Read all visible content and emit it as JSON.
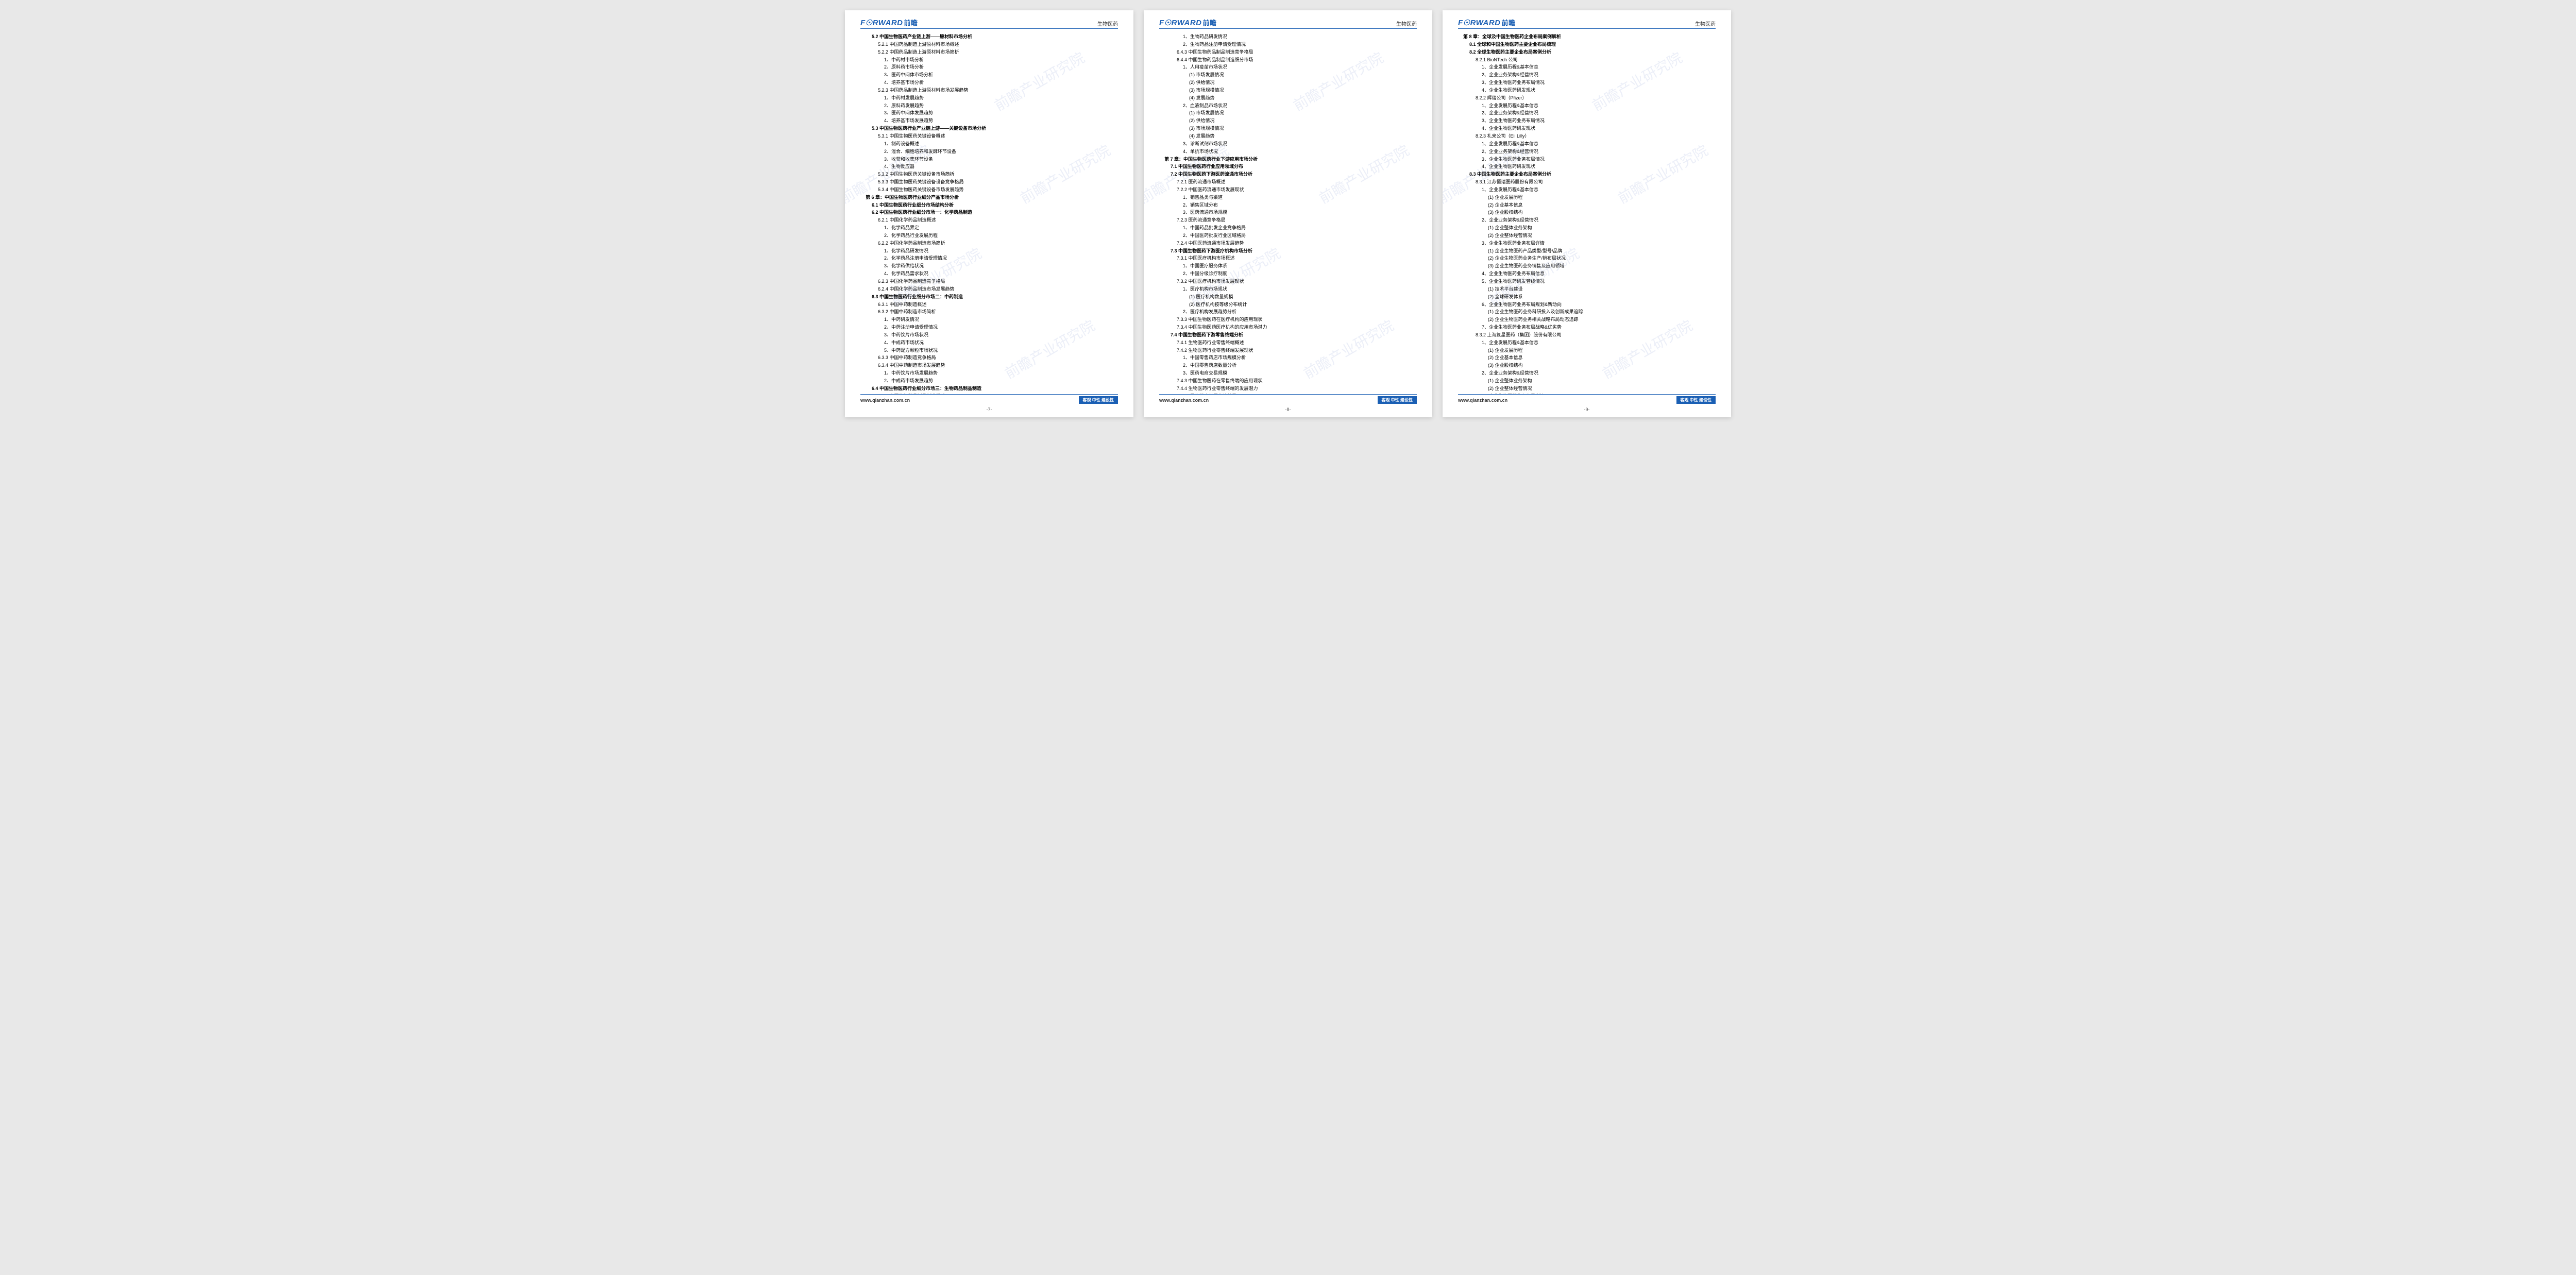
{
  "brand": {
    "logo_en": "F☉RWARD",
    "logo_cn": "前瞻",
    "header_category": "生物医药",
    "footer_url": "www.qianzhan.com.cn",
    "footer_tag": "客观 中性 建设性",
    "watermark": "前瞻产业研究院"
  },
  "pages": [
    {
      "num": "-7-",
      "lines": [
        {
          "cls": "ind1",
          "t": "5.2 中国生物医药产业链上游——原材料市场分析"
        },
        {
          "cls": "ind2",
          "t": "5.2.1 中国药品制造上游原材料市场概述"
        },
        {
          "cls": "ind2",
          "t": "5.2.2 中国药品制造上游原材料市场简析"
        },
        {
          "cls": "ind3",
          "t": "1、中药材市场分析"
        },
        {
          "cls": "ind3",
          "t": "2、原料药市场分析"
        },
        {
          "cls": "ind3",
          "t": "3、医药中间体市场分析"
        },
        {
          "cls": "ind3",
          "t": "4、培养基市场分析"
        },
        {
          "cls": "ind2",
          "t": "5.2.3 中国药品制造上游原材料市场发展趋势"
        },
        {
          "cls": "ind3",
          "t": "1、中药材发展趋势"
        },
        {
          "cls": "ind3",
          "t": "2、原料药发展趋势"
        },
        {
          "cls": "ind3",
          "t": "3、医药中间体发展趋势"
        },
        {
          "cls": "ind3",
          "t": "4、培养基市场发展趋势"
        },
        {
          "cls": "ind1",
          "t": "5.3 中国生物医药行业产业链上游——关键设备市场分析"
        },
        {
          "cls": "ind2",
          "t": "5.3.1 中国生物医药关键设备概述"
        },
        {
          "cls": "ind3",
          "t": "1、制药设备概述"
        },
        {
          "cls": "ind3",
          "t": "2、混合、细胞培养和发酵环节设备"
        },
        {
          "cls": "ind3",
          "t": "3、收获和收集环节设备"
        },
        {
          "cls": "ind3",
          "t": "4、生物反应器"
        },
        {
          "cls": "ind2",
          "t": "5.3.2 中国生物医药关键设备市场简析"
        },
        {
          "cls": "ind2",
          "t": "5.3.3 中国生物医药关键设备设备竞争格局"
        },
        {
          "cls": "ind2",
          "t": "5.3.4 中国生物医药关键设备市场发展趋势"
        },
        {
          "cls": "ind0",
          "t": "第 6 章：中国生物医药行业细分产品市场分析"
        },
        {
          "cls": "ind1",
          "t": "6.1 中国生物医药行业细分市场结构分析"
        },
        {
          "cls": "ind1",
          "t": "6.2 中国生物医药行业细分市场一：化学药品制造"
        },
        {
          "cls": "ind2",
          "t": "6.2.1 中国化学药品制造概述"
        },
        {
          "cls": "ind3",
          "t": "1、化学药品界定"
        },
        {
          "cls": "ind3",
          "t": "2、化学药品行业发展历程"
        },
        {
          "cls": "ind2",
          "t": "6.2.2 中国化学药品制造市场简析"
        },
        {
          "cls": "ind3",
          "t": "1、化学药品研发情况"
        },
        {
          "cls": "ind3",
          "t": "2、化学药品注册申请受理情况"
        },
        {
          "cls": "ind3",
          "t": "3、化学药供给状况"
        },
        {
          "cls": "ind3",
          "t": "4、化学药品需求状况"
        },
        {
          "cls": "ind2",
          "t": "6.2.3 中国化学药品制造竞争格局"
        },
        {
          "cls": "ind2",
          "t": "6.2.4 中国化学药品制造市场发展趋势"
        },
        {
          "cls": "ind1",
          "t": "6.3 中国生物医药行业细分市场二：中药制造"
        },
        {
          "cls": "ind2",
          "t": "6.3.1 中国中药制造概述"
        },
        {
          "cls": "ind2",
          "t": "6.3.2 中国中药制造市场简析"
        },
        {
          "cls": "ind3",
          "t": "1、中药研发情况"
        },
        {
          "cls": "ind3",
          "t": "2、中药注册申请受理情况"
        },
        {
          "cls": "ind3",
          "t": "3、中药饮片市场状况"
        },
        {
          "cls": "ind3",
          "t": "4、中成药市场状况"
        },
        {
          "cls": "ind3",
          "t": "5、中药配方颗粒市场状况"
        },
        {
          "cls": "ind2",
          "t": "6.3.3 中国中药制造竞争格局"
        },
        {
          "cls": "ind2",
          "t": "6.3.4 中国中药制造市场发展趋势"
        },
        {
          "cls": "ind3",
          "t": "1、中药饮片市场发展趋势"
        },
        {
          "cls": "ind3",
          "t": "2、中成药市场发展趋势"
        },
        {
          "cls": "ind1",
          "t": "6.4 中国生物医药行业细分市场三：生物药品制品制造"
        },
        {
          "cls": "ind2",
          "t": "6.4.1 中国生物药品制品制造概述"
        },
        {
          "cls": "ind2",
          "t": "6.4.2 中国生物药品研发和注册申请情况"
        }
      ]
    },
    {
      "num": "-8-",
      "lines": [
        {
          "cls": "ind3",
          "t": "1、生物药品研发情况"
        },
        {
          "cls": "ind3",
          "t": "2、生物药品注册申请受理情况"
        },
        {
          "cls": "ind2",
          "t": "6.4.3 中国生物药品制品制造竞争格局"
        },
        {
          "cls": "ind2",
          "t": "6.4.4 中国生物药品制品制造细分市场"
        },
        {
          "cls": "ind3",
          "t": "1、人用疫苗市场状况"
        },
        {
          "cls": "ind4",
          "t": "(1) 市场发展情况"
        },
        {
          "cls": "ind4",
          "t": "(2) 供给情况"
        },
        {
          "cls": "ind4",
          "t": "(3) 市场规模情况"
        },
        {
          "cls": "ind4",
          "t": "(4) 发展趋势"
        },
        {
          "cls": "ind3",
          "t": "2、血液制品市场状况"
        },
        {
          "cls": "ind4",
          "t": "(1) 市场发展情况"
        },
        {
          "cls": "ind4",
          "t": "(2) 供给情况"
        },
        {
          "cls": "ind4",
          "t": "(3) 市场规模情况"
        },
        {
          "cls": "ind4",
          "t": "(4) 发展趋势"
        },
        {
          "cls": "ind3",
          "t": "3、诊断试剂市场状况"
        },
        {
          "cls": "ind3",
          "t": "4、单抗市场状况"
        },
        {
          "cls": "ind0",
          "t": "第 7 章：中国生物医药行业下游应用市场分析"
        },
        {
          "cls": "ind1",
          "t": "7.1 中国生物医药行业应用领域分布"
        },
        {
          "cls": "ind1",
          "t": "7.2 中国生物医药下游医药流通市场分析"
        },
        {
          "cls": "ind2",
          "t": "7.2.1 医药流通市场概述"
        },
        {
          "cls": "ind2",
          "t": "7.2.2 中国医药流通市场发展现状"
        },
        {
          "cls": "ind3",
          "t": "1、销售品类与渠道"
        },
        {
          "cls": "ind3",
          "t": "2、销售区域分布"
        },
        {
          "cls": "ind3",
          "t": "3、医药流通市场规模"
        },
        {
          "cls": "ind2",
          "t": "7.2.3 医药流通竞争格局"
        },
        {
          "cls": "ind3",
          "t": "1、中国药品批发企业竞争格局"
        },
        {
          "cls": "ind3",
          "t": "2、中国医药批发行业区域格局"
        },
        {
          "cls": "ind2",
          "t": "7.2.4 中国医药流通市场发展趋势"
        },
        {
          "cls": "ind1",
          "t": "7.3 中国生物医药下游医疗机构市场分析"
        },
        {
          "cls": "ind2",
          "t": "7.3.1 中国医疗机构市场概述"
        },
        {
          "cls": "ind3",
          "t": "1、中国医疗服务体系"
        },
        {
          "cls": "ind3",
          "t": "2、中国分级诊疗制度"
        },
        {
          "cls": "ind2",
          "t": "7.3.2 中国医疗机构市场发展现状"
        },
        {
          "cls": "ind3",
          "t": "1、医疗机构市场现状"
        },
        {
          "cls": "ind4",
          "t": "(1) 医疗机构数量规模"
        },
        {
          "cls": "ind4",
          "t": "(2) 医疗机构按等级分布统计"
        },
        {
          "cls": "ind3",
          "t": "2、医疗机构发展趋势分析"
        },
        {
          "cls": "ind2",
          "t": "7.3.3 中国生物医药在医疗机构的应用现状"
        },
        {
          "cls": "ind2",
          "t": "7.3.4 中国生物医药医疗机构的应用市场潜力"
        },
        {
          "cls": "ind1",
          "t": "7.4 中国生物医药下游零售终端分析"
        },
        {
          "cls": "ind2",
          "t": "7.4.1 生物医药行业零售终端概述"
        },
        {
          "cls": "ind2",
          "t": "7.4.2 生物医药行业零售终端发展现状"
        },
        {
          "cls": "ind3",
          "t": "1、中国零售药店市场规模分析"
        },
        {
          "cls": "ind3",
          "t": "2、中国零售药店数量分析"
        },
        {
          "cls": "ind3",
          "t": "3、医药电商交易规模"
        },
        {
          "cls": "ind2",
          "t": "7.4.3 中国生物医药在零售终端的应用现状"
        },
        {
          "cls": "ind2",
          "t": "7.4.4 生物医药行业零售终端的发展潜力"
        },
        {
          "cls": "ind3",
          "t": "1、零售药店发展趋势前景"
        },
        {
          "cls": "ind3",
          "t": "2、医药电商发展趋势前景"
        }
      ]
    },
    {
      "num": "-9-",
      "lines": [
        {
          "cls": "ind0",
          "t": "第 8 章：全球及中国生物医药企业布局案例解析"
        },
        {
          "cls": "ind1",
          "t": "8.1 全球和中国生物医药主要企业布局梳理"
        },
        {
          "cls": "ind1",
          "t": "8.2 全球生物医药主要企业布局案例分析"
        },
        {
          "cls": "ind2",
          "t": "8.2.1 BioNTech 公司"
        },
        {
          "cls": "ind3",
          "t": "1、企业发展历程&基本信息"
        },
        {
          "cls": "ind3",
          "t": "2、企业业务架构&经营情况"
        },
        {
          "cls": "ind3",
          "t": "3、企业生物医药业务布局情况"
        },
        {
          "cls": "ind3",
          "t": "4、企业生物医药研发现状"
        },
        {
          "cls": "ind2",
          "t": "8.2.2 辉瑞公司（Pfizer）"
        },
        {
          "cls": "ind3",
          "t": "1、企业发展历程&基本信息"
        },
        {
          "cls": "ind3",
          "t": "2、企业业务架构&经营情况"
        },
        {
          "cls": "ind3",
          "t": "3、企业生物医药业务布局情况"
        },
        {
          "cls": "ind3",
          "t": "4、企业生物医药研发现状"
        },
        {
          "cls": "ind2",
          "t": "8.2.3 礼来公司（Eli Lilly）"
        },
        {
          "cls": "ind3",
          "t": "1、企业发展历程&基本信息"
        },
        {
          "cls": "ind3",
          "t": "2、企业业务架构&经营情况"
        },
        {
          "cls": "ind3",
          "t": "3、企业生物医药业务布局情况"
        },
        {
          "cls": "ind3",
          "t": "4、企业生物医药研发现状"
        },
        {
          "cls": "ind1",
          "t": "8.3 中国生物医药主要企业布局案例分析"
        },
        {
          "cls": "ind2",
          "t": "8.3.1 江苏恒瑞医药股份有限公司"
        },
        {
          "cls": "ind3",
          "t": "1、企业发展历程&基本信息"
        },
        {
          "cls": "ind4",
          "t": "(1) 企业发展历程"
        },
        {
          "cls": "ind4",
          "t": "(2) 企业基本信息"
        },
        {
          "cls": "ind4",
          "t": "(3) 企业股权结构"
        },
        {
          "cls": "ind3",
          "t": "2、企业业务架构&经营情况"
        },
        {
          "cls": "ind4",
          "t": "(1) 企业整体业务架构"
        },
        {
          "cls": "ind4",
          "t": "(2) 企业整体经营情况"
        },
        {
          "cls": "ind3",
          "t": "3、企业生物医药业务布局详情"
        },
        {
          "cls": "ind4",
          "t": "(1) 企业生物医药产品类型/型号/品牌"
        },
        {
          "cls": "ind4",
          "t": "(2) 企业生物医药业务生产/销布局状况"
        },
        {
          "cls": "ind4",
          "t": "(3) 企业生物医药业务销售及应用领域"
        },
        {
          "cls": "ind3",
          "t": "4、企业生物医药业务布局信息"
        },
        {
          "cls": "ind3",
          "t": "5、企业生物医药研发管线情况"
        },
        {
          "cls": "ind4",
          "t": "(1) 技术平台建设"
        },
        {
          "cls": "ind4",
          "t": "(2) 全球研发体系"
        },
        {
          "cls": "ind3",
          "t": "6、企业生物医药业务布局规划&新动向"
        },
        {
          "cls": "ind4",
          "t": "(1) 企业生物医药业务科研投入及创新成果追踪"
        },
        {
          "cls": "ind4",
          "t": "(2) 企业生物医药业务相关战略布局动态追踪"
        },
        {
          "cls": "ind3",
          "t": "7、企业生物医药业务布局战略&优劣势"
        },
        {
          "cls": "ind2",
          "t": "8.3.2 上海复星医药（集团）股份有限公司"
        },
        {
          "cls": "ind3",
          "t": "1、企业发展历程&基本信息"
        },
        {
          "cls": "ind4",
          "t": "(1) 企业发展历程"
        },
        {
          "cls": "ind4",
          "t": "(2) 企业基本信息"
        },
        {
          "cls": "ind4",
          "t": "(3) 企业股权结构"
        },
        {
          "cls": "ind3",
          "t": "2、企业业务架构&经营情况"
        },
        {
          "cls": "ind4",
          "t": "(1) 企业整体业务架构"
        },
        {
          "cls": "ind4",
          "t": "(2) 企业整体经营情况"
        },
        {
          "cls": "ind3",
          "t": "3、企业生物医药业务布局详情"
        },
        {
          "cls": "ind4",
          "t": "(1) 企业生物医药产品类型/型号/品牌"
        }
      ]
    }
  ]
}
